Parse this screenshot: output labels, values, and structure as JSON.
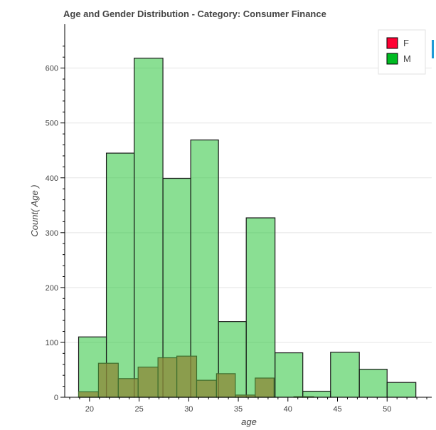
{
  "chart_data": {
    "type": "bar",
    "title": "Age and Gender Distribution - Category: Consumer Finance",
    "xlabel": "age",
    "ylabel": "Count( Age )",
    "xlim": [
      17.5,
      54.5
    ],
    "ylim": [
      0,
      680
    ],
    "xticks": [
      20,
      25,
      30,
      35,
      40,
      45,
      50
    ],
    "yticks": [
      0,
      100,
      200,
      300,
      400,
      500,
      600
    ],
    "grid": "horizontal",
    "legend_position": "top-right",
    "series": [
      {
        "name": "M",
        "color": "#00bb22",
        "bins": [
          {
            "x0": 18.9,
            "x1": 21.7,
            "value": 110
          },
          {
            "x0": 21.7,
            "x1": 24.5,
            "value": 445
          },
          {
            "x0": 24.5,
            "x1": 27.4,
            "value": 618
          },
          {
            "x0": 27.4,
            "x1": 30.2,
            "value": 399
          },
          {
            "x0": 30.2,
            "x1": 33.0,
            "value": 469
          },
          {
            "x0": 33.0,
            "x1": 35.8,
            "value": 138
          },
          {
            "x0": 35.8,
            "x1": 38.7,
            "value": 327
          },
          {
            "x0": 38.7,
            "x1": 41.5,
            "value": 81
          },
          {
            "x0": 41.5,
            "x1": 44.3,
            "value": 11
          },
          {
            "x0": 44.3,
            "x1": 47.2,
            "value": 82
          },
          {
            "x0": 47.2,
            "x1": 50.0,
            "value": 51
          },
          {
            "x0": 50.0,
            "x1": 52.9,
            "value": 27
          }
        ]
      },
      {
        "name": "F",
        "color": "#ff0033",
        "bins": [
          {
            "x0": 18.9,
            "x1": 20.9,
            "value": 10
          },
          {
            "x0": 20.9,
            "x1": 22.9,
            "value": 62
          },
          {
            "x0": 22.9,
            "x1": 24.9,
            "value": 34
          },
          {
            "x0": 24.9,
            "x1": 26.9,
            "value": 55
          },
          {
            "x0": 26.9,
            "x1": 28.8,
            "value": 72
          },
          {
            "x0": 28.8,
            "x1": 30.8,
            "value": 75
          },
          {
            "x0": 30.8,
            "x1": 32.8,
            "value": 31
          },
          {
            "x0": 32.8,
            "x1": 34.7,
            "value": 43
          },
          {
            "x0": 34.7,
            "x1": 36.7,
            "value": 4
          },
          {
            "x0": 36.7,
            "x1": 38.6,
            "value": 35
          },
          {
            "x0": 38.6,
            "x1": 40.6,
            "value": 0
          },
          {
            "x0": 40.6,
            "x1": 42.6,
            "value": 1
          }
        ]
      }
    ]
  },
  "legend": [
    {
      "label": "F",
      "color": "#ff0033"
    },
    {
      "label": "M",
      "color": "#00bb22"
    }
  ]
}
